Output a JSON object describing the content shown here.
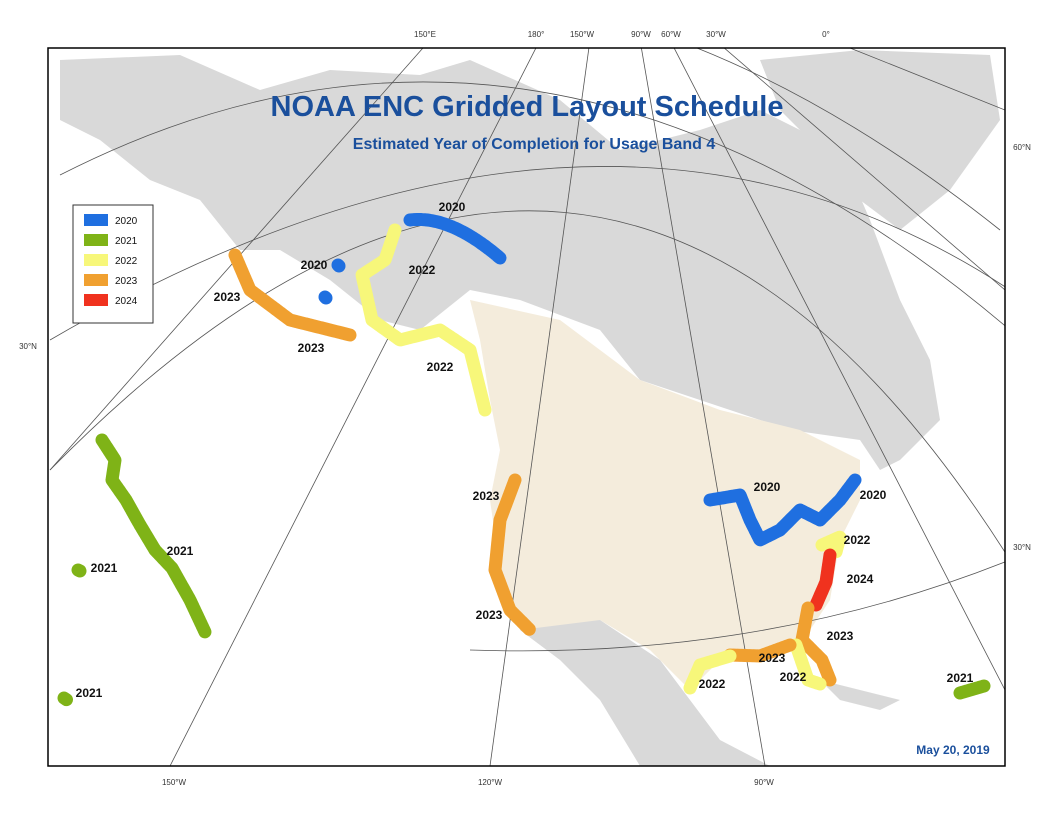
{
  "title": "NOAA ENC Gridded Layout Schedule",
  "subtitle": "Estimated Year of Completion for Usage Band 4",
  "legend": [
    {
      "label": "2020",
      "color": "#1f6fe0"
    },
    {
      "label": "2021",
      "color": "#7fb317"
    },
    {
      "label": "2022",
      "color": "#f7f77a"
    },
    {
      "label": "2023",
      "color": "#f0a030"
    },
    {
      "label": "2024",
      "color": "#f0321e"
    }
  ],
  "graticule_labels": {
    "top": [
      "150°E",
      "180°",
      "150°W",
      "90°W",
      "60°W",
      "30°W",
      "0°"
    ],
    "left": [
      "30°N"
    ],
    "right": [
      "60°N",
      "30°N"
    ],
    "bottom": [
      "150°W",
      "120°W",
      "90°W"
    ]
  },
  "region_labels": [
    "2020",
    "2020",
    "2022",
    "2023",
    "2023",
    "2022",
    "2023",
    "2020",
    "2020",
    "2021",
    "2021",
    "2022",
    "2024",
    "2023",
    "2023",
    "2023",
    "2022",
    "2022",
    "2021",
    "2021"
  ],
  "date": "May 20, 2019"
}
